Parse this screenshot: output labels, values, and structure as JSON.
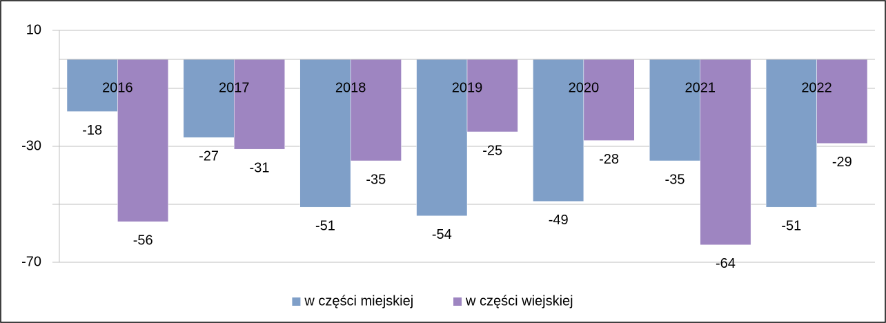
{
  "chart_data": {
    "type": "bar",
    "categories": [
      "2016",
      "2017",
      "2018",
      "2019",
      "2020",
      "2021",
      "2022"
    ],
    "series": [
      {
        "name": "w części miejskiej",
        "color": "#7f9fc8",
        "values": [
          -18,
          -27,
          -51,
          -54,
          -49,
          -35,
          -51
        ]
      },
      {
        "name": "w części wiejskiej",
        "color": "#9e85c1",
        "values": [
          -56,
          -31,
          -35,
          -25,
          -28,
          -64,
          -29
        ]
      }
    ],
    "ylim": [
      10,
      -70
    ],
    "yticks": [
      10,
      -30,
      -70
    ],
    "yminorticks": [
      -10,
      -50
    ],
    "grid": true,
    "legend": "bottom"
  }
}
